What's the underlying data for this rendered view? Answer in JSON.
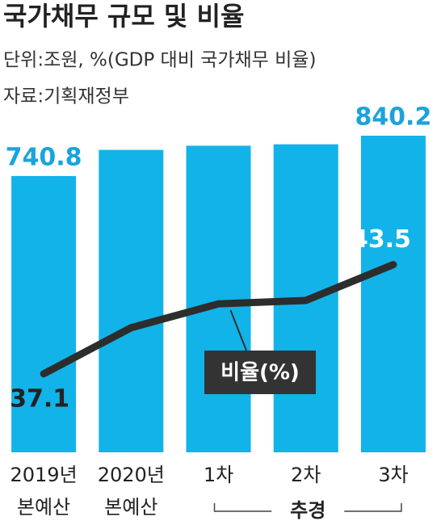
{
  "chart_data": {
    "type": "bar",
    "title": "국가채무 규모 및 비율",
    "subtitle": "단위:조원, %(GDP 대비 국가채무 비율)",
    "source": "자료:기획재정부",
    "categories": [
      "2019년 본예산",
      "2020년 본예산",
      "1차",
      "2차",
      "3차"
    ],
    "group_label": "추경",
    "annotation": "비율(%)",
    "ylim": [
      60,
      880
    ],
    "y2lim": [
      32.5,
      52
    ],
    "series": [
      {
        "type": "bar",
        "color": "#12b3e8",
        "label_color": "#1aa3dc",
        "values": [
          740.8,
          805.2,
          815.5,
          819.0,
          840.2
        ]
      },
      {
        "type": "line",
        "axis": "y2",
        "color": "#2d2d2d",
        "values": [
          37.1,
          39.8,
          41.2,
          41.4,
          43.5
        ]
      }
    ]
  }
}
